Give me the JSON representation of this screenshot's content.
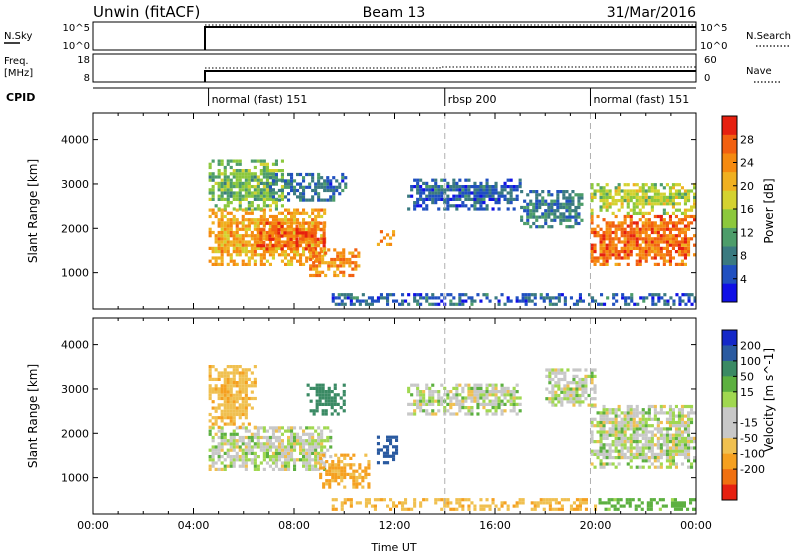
{
  "header": {
    "station": "Unwin (fitACF)",
    "beam": "Beam 13",
    "date": "31/Mar/2016"
  },
  "strips": {
    "nsky_label": "N.Sky",
    "nsky_ticks": [
      "10^5",
      "10^0"
    ],
    "nsearch_label": "N.Search",
    "nsearch_ticks": [
      "10^5",
      "10^0"
    ],
    "freq_label_top": "Freq.",
    "freq_label_bottom": "[MHz]",
    "freq_ticks": [
      "18",
      "8"
    ],
    "nave_label": "Nave",
    "nave_ticks": [
      "60",
      "0"
    ],
    "cpid_label": "CPID",
    "cpid_modes": [
      {
        "name": "normal (fast) 151",
        "start_hour": 4.6
      },
      {
        "name": "rbsp 200",
        "start_hour": 14.0
      },
      {
        "name": "normal (fast) 151",
        "start_hour": 19.8
      }
    ]
  },
  "chart_data": [
    {
      "type": "heatmap",
      "quantity": "Power",
      "ylabel": "Slant Range [km]",
      "xlabel": "",
      "xlim": [
        0,
        24
      ],
      "ylim": [
        180,
        4600
      ],
      "yticks": [
        "4000",
        "3000",
        "2000",
        "1000"
      ],
      "ytick_values": [
        4000,
        3000,
        2000,
        1000
      ],
      "colorbar": {
        "label": "Power [dB]",
        "ticks": [
          "28",
          "24",
          "20",
          "16",
          "12",
          "8",
          "4"
        ],
        "tick_values": [
          28,
          24,
          20,
          16,
          12,
          8,
          4
        ],
        "range": [
          0,
          32
        ],
        "colors": [
          "#1010e6",
          "#2050c0",
          "#3a7a80",
          "#4d9d6a",
          "#8cc83c",
          "#d4d230",
          "#f0b020",
          "#f58a10",
          "#f26010",
          "#e62010"
        ]
      },
      "regions": [
        {
          "t0": 4.6,
          "t1": 9.2,
          "r0": 1150,
          "r1": 2400,
          "level": 22
        },
        {
          "t0": 6.5,
          "t1": 9.2,
          "r0": 1500,
          "r1": 2100,
          "level": 27
        },
        {
          "t0": 8.6,
          "t1": 10.6,
          "r0": 900,
          "r1": 1500,
          "level": 24
        },
        {
          "t0": 4.6,
          "t1": 7.5,
          "r0": 2400,
          "r1": 3500,
          "level": 13
        },
        {
          "t0": 7.0,
          "t1": 10.0,
          "r0": 2600,
          "r1": 3200,
          "level": 7
        },
        {
          "t0": 11.3,
          "t1": 12.0,
          "r0": 1600,
          "r1": 1900,
          "level": 22
        },
        {
          "t0": 12.5,
          "t1": 17.0,
          "r0": 2400,
          "r1": 3100,
          "level": 6
        },
        {
          "t0": 17.0,
          "t1": 19.5,
          "r0": 2000,
          "r1": 2800,
          "level": 8
        },
        {
          "t0": 19.8,
          "t1": 24.0,
          "r0": 1150,
          "r1": 2300,
          "level": 26
        },
        {
          "t0": 19.8,
          "t1": 24.0,
          "r0": 2300,
          "r1": 3000,
          "level": 16
        },
        {
          "t0": 9.5,
          "t1": 24.0,
          "r0": 250,
          "r1": 500,
          "level": 6
        }
      ]
    },
    {
      "type": "heatmap",
      "quantity": "Velocity",
      "ylabel": "Slant Range [km]",
      "xlabel": "Time UT",
      "xlim": [
        0,
        24
      ],
      "ylim": [
        180,
        4600
      ],
      "xticks": [
        "00:00",
        "04:00",
        "08:00",
        "12:00",
        "16:00",
        "20:00",
        "00:00"
      ],
      "xtick_values": [
        0,
        4,
        8,
        12,
        16,
        20,
        24
      ],
      "yticks": [
        "4000",
        "3000",
        "2000",
        "1000"
      ],
      "ytick_values": [
        4000,
        3000,
        2000,
        1000
      ],
      "colorbar": {
        "label": "Velocity [m s^-1]",
        "ticks": [
          "200",
          "100",
          "50",
          "15",
          "-15",
          "-50",
          "-100",
          "-200"
        ],
        "tick_values": [
          200,
          100,
          50,
          15,
          -15,
          -50,
          -100,
          -200
        ],
        "colors": [
          "#1428c8",
          "#2a5aa0",
          "#3a8a64",
          "#5cb040",
          "#a0d850",
          "#c8c8c8",
          "#c8c8c8",
          "#f0c050",
          "#f5a020",
          "#f07010",
          "#e62010"
        ]
      },
      "regions": [
        {
          "t0": 4.6,
          "t1": 9.5,
          "r0": 1150,
          "r1": 2100,
          "level": 0
        },
        {
          "t0": 4.6,
          "t1": 6.5,
          "r0": 2100,
          "r1": 3500,
          "level": -40
        },
        {
          "t0": 9.0,
          "t1": 11.0,
          "r0": 750,
          "r1": 1500,
          "level": -60
        },
        {
          "t0": 11.3,
          "t1": 12.1,
          "r0": 1300,
          "r1": 1900,
          "level": 150
        },
        {
          "t0": 8.5,
          "t1": 10.0,
          "r0": 2400,
          "r1": 3100,
          "level": 80
        },
        {
          "t0": 12.5,
          "t1": 17.0,
          "r0": 2400,
          "r1": 3100,
          "level": 0
        },
        {
          "t0": 19.8,
          "t1": 24.0,
          "r0": 1200,
          "r1": 2600,
          "level": 0
        },
        {
          "t0": 18.0,
          "t1": 20.0,
          "r0": 2600,
          "r1": 3400,
          "level": 0
        },
        {
          "t0": 9.5,
          "t1": 20.0,
          "r0": 250,
          "r1": 500,
          "level": -40
        },
        {
          "t0": 20.0,
          "t1": 24.0,
          "r0": 250,
          "r1": 500,
          "level": 30
        }
      ]
    }
  ]
}
